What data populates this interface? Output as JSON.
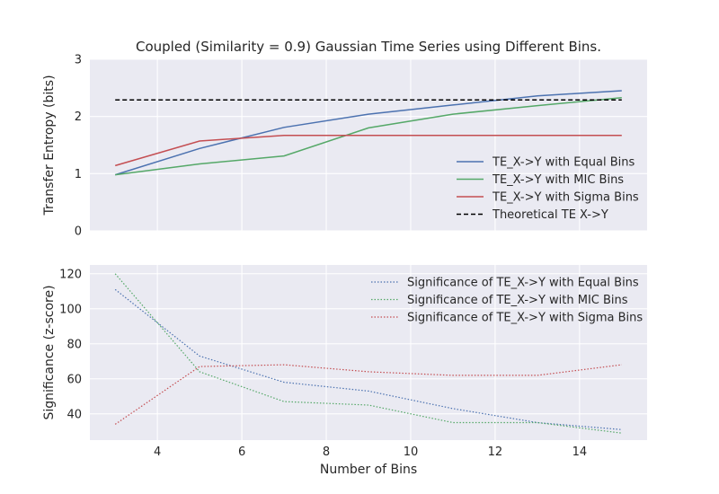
{
  "chart_data": [
    {
      "type": "line",
      "title": "Coupled (Similarity = 0.9) Gaussian Time Series using Different Bins.",
      "xlabel": "",
      "ylabel": "Transfer Entropy (bits)",
      "xlim": [
        2.4,
        15.6
      ],
      "ylim": [
        0,
        3
      ],
      "xticks": [
        4,
        6,
        8,
        10,
        12,
        14
      ],
      "yticks": [
        0,
        1,
        2,
        3
      ],
      "grid": true,
      "legend_position": "lower-right",
      "series": [
        {
          "name": "TE_X->Y with Equal Bins",
          "color": "#4c72b0",
          "style": "solid",
          "x": [
            3,
            5,
            7,
            9,
            11,
            13,
            15
          ],
          "y": [
            0.98,
            1.44,
            1.81,
            2.04,
            2.2,
            2.36,
            2.45
          ]
        },
        {
          "name": "TE_X->Y with MIC Bins",
          "color": "#55a868",
          "style": "solid",
          "x": [
            3,
            5,
            7,
            9,
            11,
            13,
            15
          ],
          "y": [
            0.98,
            1.17,
            1.31,
            1.8,
            2.04,
            2.19,
            2.33
          ]
        },
        {
          "name": "TE_X->Y with Sigma Bins",
          "color": "#c44e52",
          "style": "solid",
          "x": [
            3,
            5,
            7,
            9,
            11,
            13,
            15
          ],
          "y": [
            1.14,
            1.57,
            1.67,
            1.67,
            1.67,
            1.67,
            1.67
          ]
        },
        {
          "name": "Theoretical TE X->Y",
          "color": "#000000",
          "style": "dashed",
          "x": [
            3,
            15
          ],
          "y": [
            2.29,
            2.29
          ]
        }
      ]
    },
    {
      "type": "line",
      "title": "",
      "xlabel": "Number of Bins",
      "ylabel": "Significance (z-score)",
      "xlim": [
        2.4,
        15.6
      ],
      "ylim": [
        25,
        125
      ],
      "xticks": [
        4,
        6,
        8,
        10,
        12,
        14
      ],
      "yticks": [
        40,
        60,
        80,
        100,
        120
      ],
      "grid": true,
      "legend_position": "top-right",
      "series": [
        {
          "name": "Significance of TE_X->Y with Equal Bins",
          "color": "#4c72b0",
          "style": "dotted",
          "x": [
            3,
            5,
            7,
            9,
            11,
            13,
            15
          ],
          "y": [
            111,
            73,
            58,
            53,
            43,
            35,
            31
          ]
        },
        {
          "name": "Significance of TE_X->Y with MIC Bins",
          "color": "#55a868",
          "style": "dotted",
          "x": [
            3,
            5,
            7,
            9,
            11,
            13,
            15
          ],
          "y": [
            120,
            64,
            47,
            45,
            35,
            35,
            29
          ]
        },
        {
          "name": "Significance of TE_X->Y with Sigma Bins",
          "color": "#c44e52",
          "style": "dotted",
          "x": [
            3,
            5,
            7,
            9,
            11,
            13,
            15
          ],
          "y": [
            34,
            67,
            68,
            64,
            62,
            62,
            68
          ]
        }
      ]
    }
  ]
}
